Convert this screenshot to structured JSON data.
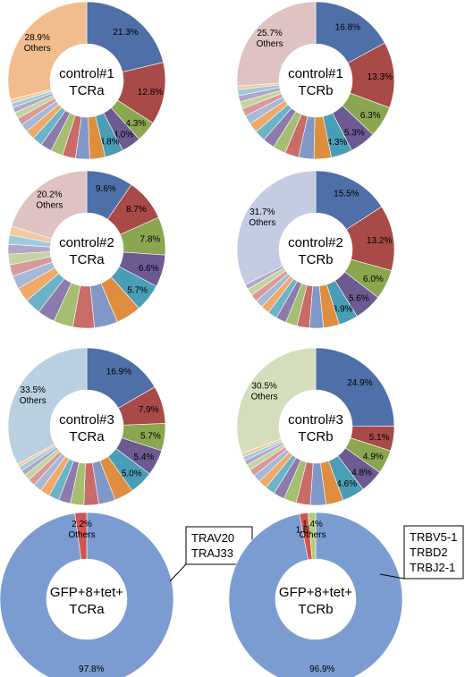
{
  "chart_data": [
    {
      "type": "donut",
      "center_label": [
        "control#1",
        "TCRa"
      ],
      "slices": [
        {
          "value": 21.3,
          "label": "21.3%",
          "color": "#4F6FA8"
        },
        {
          "value": 12.8,
          "label": "12.8%",
          "color": "#A84A47"
        },
        {
          "value": 4.3,
          "label": "4.3%",
          "color": "#8AA64E"
        },
        {
          "value": 4.0,
          "label": "4.0%",
          "color": "#6E5A93"
        },
        {
          "value": 3.8,
          "label": "3.8%",
          "color": "#4A9DB6"
        },
        {
          "value": 3.2,
          "label": "",
          "color": "#DE8E3E"
        },
        {
          "value": 2.9,
          "label": "",
          "color": "#8097C7"
        },
        {
          "value": 2.7,
          "label": "",
          "color": "#C86B69"
        },
        {
          "value": 2.5,
          "label": "",
          "color": "#A5BE72"
        },
        {
          "value": 2.3,
          "label": "",
          "color": "#8C7BAD"
        },
        {
          "value": 2.1,
          "label": "",
          "color": "#6DB3C7"
        },
        {
          "value": 1.9,
          "label": "",
          "color": "#EFA968"
        },
        {
          "value": 1.7,
          "label": "",
          "color": "#A8B8D9"
        },
        {
          "value": 1.5,
          "label": "",
          "color": "#D89A99"
        },
        {
          "value": 1.3,
          "label": "",
          "color": "#C3D4A1"
        },
        {
          "value": 1.1,
          "label": "",
          "color": "#B2A7C8"
        },
        {
          "value": 0.9,
          "label": "",
          "color": "#9DCBD8"
        },
        {
          "value": 0.8,
          "label": "",
          "color": "#F3C9A1"
        },
        {
          "value": 28.9,
          "label": "28.9%\nOthers",
          "color": "#F2BD8E"
        }
      ]
    },
    {
      "type": "donut",
      "center_label": [
        "control#1",
        "TCRb"
      ],
      "slices": [
        {
          "value": 16.8,
          "label": "16.8%",
          "color": "#4F6FA8"
        },
        {
          "value": 13.3,
          "label": "13.3%",
          "color": "#A84A47"
        },
        {
          "value": 6.3,
          "label": "6.3%",
          "color": "#8AA64E"
        },
        {
          "value": 5.3,
          "label": "5.3%",
          "color": "#6E5A93"
        },
        {
          "value": 4.3,
          "label": "4.3%",
          "color": "#4A9DB6"
        },
        {
          "value": 3.5,
          "label": "",
          "color": "#DE8E3E"
        },
        {
          "value": 3.1,
          "label": "",
          "color": "#8097C7"
        },
        {
          "value": 2.8,
          "label": "",
          "color": "#C86B69"
        },
        {
          "value": 2.6,
          "label": "",
          "color": "#A5BE72"
        },
        {
          "value": 2.4,
          "label": "",
          "color": "#8C7BAD"
        },
        {
          "value": 2.2,
          "label": "",
          "color": "#6DB3C7"
        },
        {
          "value": 2.0,
          "label": "",
          "color": "#EFA968"
        },
        {
          "value": 1.8,
          "label": "",
          "color": "#A8B8D9"
        },
        {
          "value": 1.6,
          "label": "",
          "color": "#D89A99"
        },
        {
          "value": 1.4,
          "label": "",
          "color": "#C3D4A1"
        },
        {
          "value": 1.3,
          "label": "",
          "color": "#B2A7C8"
        },
        {
          "value": 1.2,
          "label": "",
          "color": "#9DCBD8"
        },
        {
          "value": 0.7,
          "label": "",
          "color": "#F3C9A1"
        },
        {
          "value": 25.7,
          "label": "25.7%\nOthers",
          "color": "#DFC2C2"
        }
      ]
    },
    {
      "type": "donut",
      "center_label": [
        "control#2",
        "TCRa"
      ],
      "slices": [
        {
          "value": 9.6,
          "label": "9.6%",
          "color": "#4F6FA8"
        },
        {
          "value": 8.7,
          "label": "8.7%",
          "color": "#A84A47"
        },
        {
          "value": 7.8,
          "label": "7.8%",
          "color": "#8AA64E"
        },
        {
          "value": 6.6,
          "label": "6.6%",
          "color": "#6E5A93"
        },
        {
          "value": 5.7,
          "label": "5.7%",
          "color": "#4A9DB6"
        },
        {
          "value": 5.2,
          "label": "",
          "color": "#DE8E3E"
        },
        {
          "value": 4.8,
          "label": "",
          "color": "#8097C7"
        },
        {
          "value": 4.4,
          "label": "",
          "color": "#C86B69"
        },
        {
          "value": 4.0,
          "label": "",
          "color": "#A5BE72"
        },
        {
          "value": 3.6,
          "label": "",
          "color": "#8C7BAD"
        },
        {
          "value": 3.3,
          "label": "",
          "color": "#6DB3C7"
        },
        {
          "value": 3.0,
          "label": "",
          "color": "#EFA968"
        },
        {
          "value": 2.7,
          "label": "",
          "color": "#A8B8D9"
        },
        {
          "value": 2.4,
          "label": "",
          "color": "#D89A99"
        },
        {
          "value": 2.2,
          "label": "",
          "color": "#C3D4A1"
        },
        {
          "value": 2.0,
          "label": "",
          "color": "#B2A7C8"
        },
        {
          "value": 1.9,
          "label": "",
          "color": "#9DCBD8"
        },
        {
          "value": 1.8,
          "label": "",
          "color": "#F3C9A1"
        },
        {
          "value": 20.2,
          "label": "20.2%\nOthers",
          "color": "#DFC2C2"
        }
      ]
    },
    {
      "type": "donut",
      "center_label": [
        "control#2",
        "TCRb"
      ],
      "slices": [
        {
          "value": 15.5,
          "label": "15.5%",
          "color": "#4F6FA8"
        },
        {
          "value": 13.2,
          "label": "13.2%",
          "color": "#A84A47"
        },
        {
          "value": 6.0,
          "label": "6.0%",
          "color": "#8AA64E"
        },
        {
          "value": 5.6,
          "label": "5.6%",
          "color": "#6E5A93"
        },
        {
          "value": 3.9,
          "label": "3.9%",
          "color": "#4A9DB6"
        },
        {
          "value": 3.2,
          "label": "",
          "color": "#DE8E3E"
        },
        {
          "value": 2.8,
          "label": "",
          "color": "#8097C7"
        },
        {
          "value": 2.5,
          "label": "",
          "color": "#C86B69"
        },
        {
          "value": 2.3,
          "label": "",
          "color": "#A5BE72"
        },
        {
          "value": 2.1,
          "label": "",
          "color": "#8C7BAD"
        },
        {
          "value": 1.9,
          "label": "",
          "color": "#6DB3C7"
        },
        {
          "value": 1.7,
          "label": "",
          "color": "#EFA968"
        },
        {
          "value": 1.6,
          "label": "",
          "color": "#A8B8D9"
        },
        {
          "value": 1.5,
          "label": "",
          "color": "#D89A99"
        },
        {
          "value": 1.4,
          "label": "",
          "color": "#C3D4A1"
        },
        {
          "value": 1.0,
          "label": "",
          "color": "#B2A7C8"
        },
        {
          "value": 31.7,
          "label": "31.7%\nOthers",
          "color": "#C4CCE2"
        }
      ]
    },
    {
      "type": "donut",
      "center_label": [
        "control#3",
        "TCRa"
      ],
      "slices": [
        {
          "value": 16.9,
          "label": "16.9%",
          "color": "#4F6FA8"
        },
        {
          "value": 7.9,
          "label": "7.9%",
          "color": "#A84A47"
        },
        {
          "value": 5.7,
          "label": "5.7%",
          "color": "#8AA64E"
        },
        {
          "value": 5.4,
          "label": "5.4%",
          "color": "#6E5A93"
        },
        {
          "value": 5.0,
          "label": "5.0%",
          "color": "#4A9DB6"
        },
        {
          "value": 4.0,
          "label": "",
          "color": "#DE8E3E"
        },
        {
          "value": 3.5,
          "label": "",
          "color": "#8097C7"
        },
        {
          "value": 3.1,
          "label": "",
          "color": "#C86B69"
        },
        {
          "value": 2.8,
          "label": "",
          "color": "#A5BE72"
        },
        {
          "value": 2.5,
          "label": "",
          "color": "#8C7BAD"
        },
        {
          "value": 2.2,
          "label": "",
          "color": "#6DB3C7"
        },
        {
          "value": 2.0,
          "label": "",
          "color": "#EFA968"
        },
        {
          "value": 1.8,
          "label": "",
          "color": "#A8B8D9"
        },
        {
          "value": 1.5,
          "label": "",
          "color": "#D89A99"
        },
        {
          "value": 1.3,
          "label": "",
          "color": "#C3D4A1"
        },
        {
          "value": 1.1,
          "label": "",
          "color": "#B2A7C8"
        },
        {
          "value": 0.9,
          "label": "",
          "color": "#9DCBD8"
        },
        {
          "value": 0.7,
          "label": "",
          "color": "#F3C9A1"
        },
        {
          "value": 33.5,
          "label": "33.5%\nOthers",
          "color": "#B9D0E0"
        }
      ]
    },
    {
      "type": "donut",
      "center_label": [
        "control#3",
        "TCRb"
      ],
      "slices": [
        {
          "value": 24.9,
          "label": "24.9%",
          "color": "#4F6FA8"
        },
        {
          "value": 5.1,
          "label": "5.1%",
          "color": "#A84A47"
        },
        {
          "value": 4.9,
          "label": "4.9%",
          "color": "#8AA64E"
        },
        {
          "value": 4.8,
          "label": "4.8%",
          "color": "#6E5A93"
        },
        {
          "value": 4.6,
          "label": "4.6%",
          "color": "#4A9DB6"
        },
        {
          "value": 3.6,
          "label": "",
          "color": "#DE8E3E"
        },
        {
          "value": 3.2,
          "label": "",
          "color": "#8097C7"
        },
        {
          "value": 2.9,
          "label": "",
          "color": "#C86B69"
        },
        {
          "value": 2.6,
          "label": "",
          "color": "#A5BE72"
        },
        {
          "value": 2.3,
          "label": "",
          "color": "#8C7BAD"
        },
        {
          "value": 2.0,
          "label": "",
          "color": "#6DB3C7"
        },
        {
          "value": 1.8,
          "label": "",
          "color": "#EFA968"
        },
        {
          "value": 1.6,
          "label": "",
          "color": "#A8B8D9"
        },
        {
          "value": 1.4,
          "label": "",
          "color": "#D89A99"
        },
        {
          "value": 1.2,
          "label": "",
          "color": "#C3D4A1"
        },
        {
          "value": 1.0,
          "label": "",
          "color": "#B2A7C8"
        },
        {
          "value": 0.8,
          "label": "",
          "color": "#9DCBD8"
        },
        {
          "value": 0.8,
          "label": "",
          "color": "#F3C9A1"
        },
        {
          "value": 30.5,
          "label": "30.5%\nOthers",
          "color": "#D4DEBC"
        }
      ]
    },
    {
      "type": "donut",
      "center_label": [
        "GFP+8+tet+",
        "TCRa"
      ],
      "slices": [
        {
          "value": 97.8,
          "label": "97.8%",
          "color": "#7A9CD1"
        },
        {
          "value": 2.2,
          "label": "2.2%\nOthers",
          "color": "#D2544F"
        }
      ],
      "callout": [
        "TRAV20",
        "TRAJ33"
      ]
    },
    {
      "type": "donut",
      "center_label": [
        "GFP+8+tet+",
        "TCRb"
      ],
      "slices": [
        {
          "value": 96.9,
          "label": "96.9%",
          "color": "#7A9CD1"
        },
        {
          "value": 1.6,
          "label": "1.6%",
          "color": "#D2544F"
        },
        {
          "value": 1.4,
          "label": "1.4%\nOthers",
          "color": "#B6CD7A"
        }
      ],
      "callout": [
        "TRBV5-1",
        "TRBD2",
        "TRBJ2-1"
      ]
    }
  ]
}
